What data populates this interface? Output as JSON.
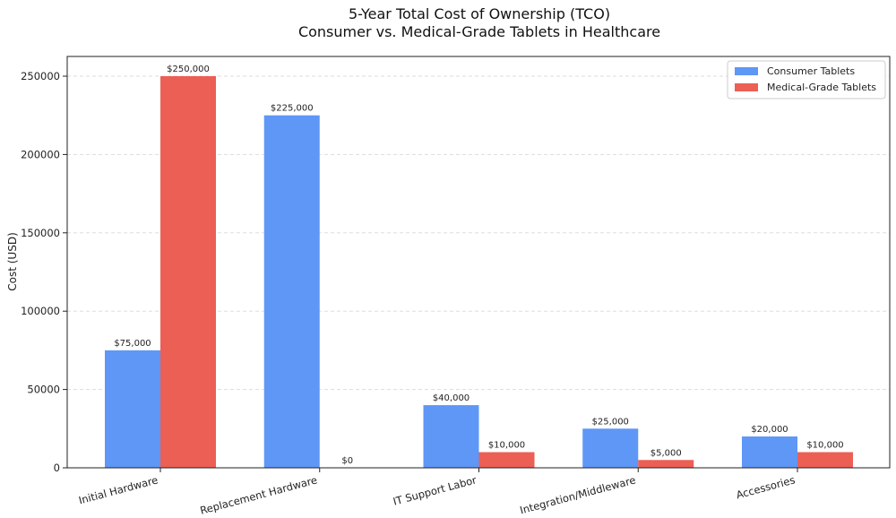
{
  "chart_data": {
    "type": "bar",
    "title": [
      "5-Year Total Cost of Ownership (TCO)",
      "Consumer vs. Medical-Grade Tablets in Healthcare"
    ],
    "xlabel": "",
    "ylabel": "Cost (USD)",
    "ylim": [
      0,
      262500
    ],
    "yticks": [
      0,
      50000,
      100000,
      150000,
      200000,
      250000
    ],
    "grid": "horizontal dashed",
    "legend_position": "top-right",
    "categories": [
      "Initial Hardware",
      "Replacement Hardware",
      "IT Support Labor",
      "Integration/Middleware",
      "Accessories"
    ],
    "series": [
      {
        "name": "Consumer Tablets",
        "color": "#5e97f6",
        "values": [
          75000,
          225000,
          40000,
          25000,
          20000
        ],
        "labels": [
          "$75,000",
          "$225,000",
          "$40,000",
          "$25,000",
          "$20,000"
        ]
      },
      {
        "name": "Medical-Grade Tablets",
        "color": "#ec5f55",
        "values": [
          250000,
          0,
          10000,
          5000,
          10000
        ],
        "labels": [
          "$250,000",
          "$0",
          "$10,000",
          "$5,000",
          "$10,000"
        ]
      }
    ]
  }
}
